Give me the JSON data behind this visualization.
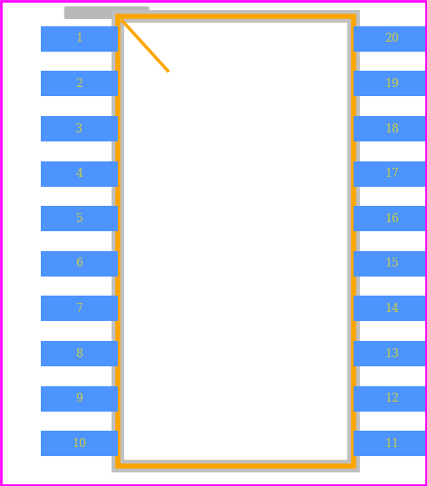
{
  "bg_color": "#ffffff",
  "magenta_color": "#ff00ff",
  "chip_fill": "#ffffff",
  "chip_gray_color": "#c0c0c0",
  "chip_orange_color": "#ffa500",
  "pin_fill": "#4d94ff",
  "pin_text_color": "#cccc44",
  "notch_color": "#ffa500",
  "gray_bar_color": "#b8b8b8",
  "left_pins": [
    1,
    2,
    3,
    4,
    5,
    6,
    7,
    8,
    9,
    10
  ],
  "right_pins": [
    20,
    19,
    18,
    17,
    16,
    15,
    14,
    13,
    12,
    11
  ],
  "fig_width": 4.71,
  "fig_height": 5.36,
  "dpi": 100
}
